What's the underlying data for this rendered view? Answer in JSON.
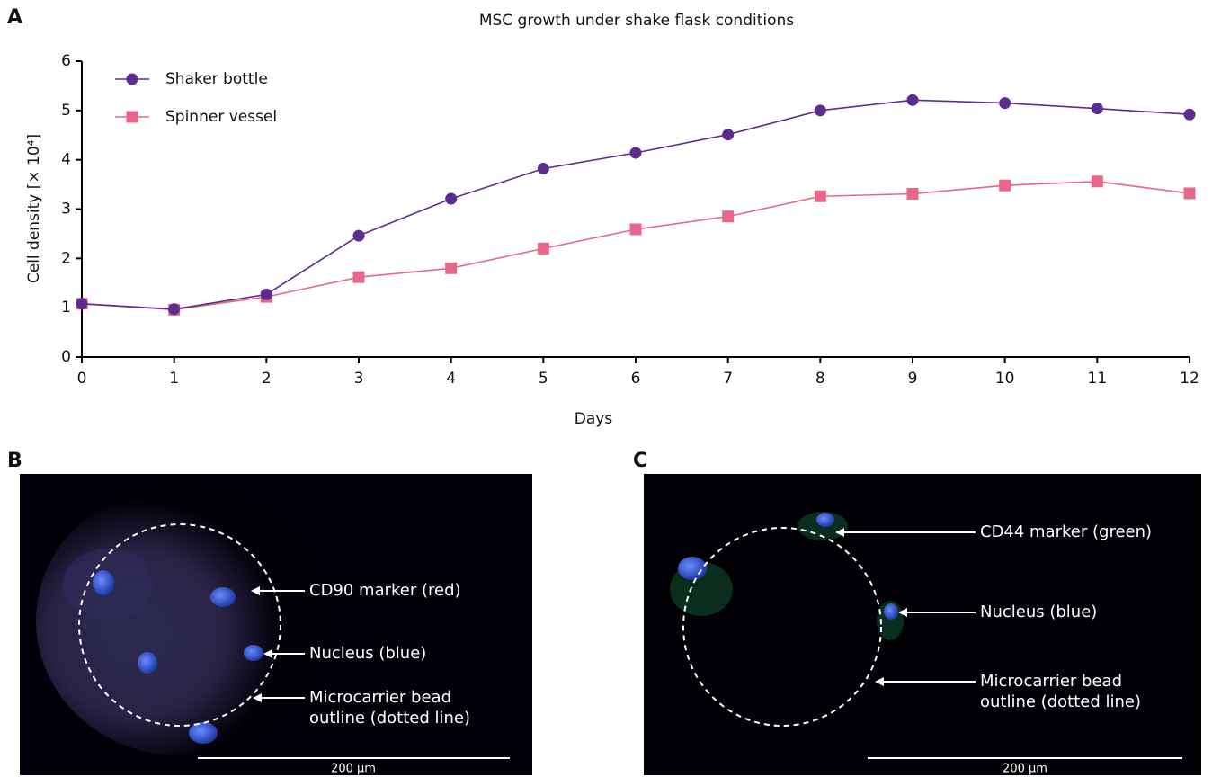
{
  "chart_data": {
    "type": "line",
    "title": "MSC growth under shake flask conditions",
    "xlabel": "Days",
    "ylabel": "Cell density [× 10⁴]",
    "x": [
      0,
      1,
      2,
      3,
      4,
      5,
      6,
      7,
      8,
      9,
      10,
      11,
      12
    ],
    "series": [
      {
        "name": "Shaker bottle",
        "color": "#5b2d8e",
        "marker": "circle",
        "values": [
          1.08,
          0.97,
          1.27,
          2.46,
          3.21,
          3.82,
          4.14,
          4.51,
          5.0,
          5.21,
          5.15,
          5.04,
          4.92
        ]
      },
      {
        "name": "Spinner vessel",
        "color": "#e8668a",
        "marker": "square",
        "values": [
          1.08,
          0.96,
          1.22,
          1.62,
          1.8,
          2.2,
          2.59,
          2.85,
          3.26,
          3.31,
          3.48,
          3.56,
          3.32
        ]
      }
    ],
    "xlim": [
      0,
      12
    ],
    "xticks": [
      0,
      1,
      2,
      3,
      4,
      5,
      6,
      7,
      8,
      9,
      10,
      11,
      12
    ],
    "ylim": [
      0,
      6
    ],
    "yticks": [
      0,
      1,
      2,
      3,
      4,
      5,
      6
    ],
    "legend": "upper-left"
  },
  "panel_labels": [
    "A",
    "B",
    "C"
  ],
  "images": [
    {
      "annotations": [
        [
          "CD90 marker (red)"
        ],
        [
          "Nucleus (blue)"
        ],
        [
          "Microcarrier bead",
          "outline (dotted line)"
        ]
      ],
      "scale_bar": "200 µm"
    },
    {
      "annotations": [
        [
          "CD44 marker (green)"
        ],
        [
          "Nucleus (blue)"
        ],
        [
          "Microcarrier bead",
          "outline (dotted line)"
        ]
      ],
      "scale_bar": "200 µm"
    }
  ]
}
